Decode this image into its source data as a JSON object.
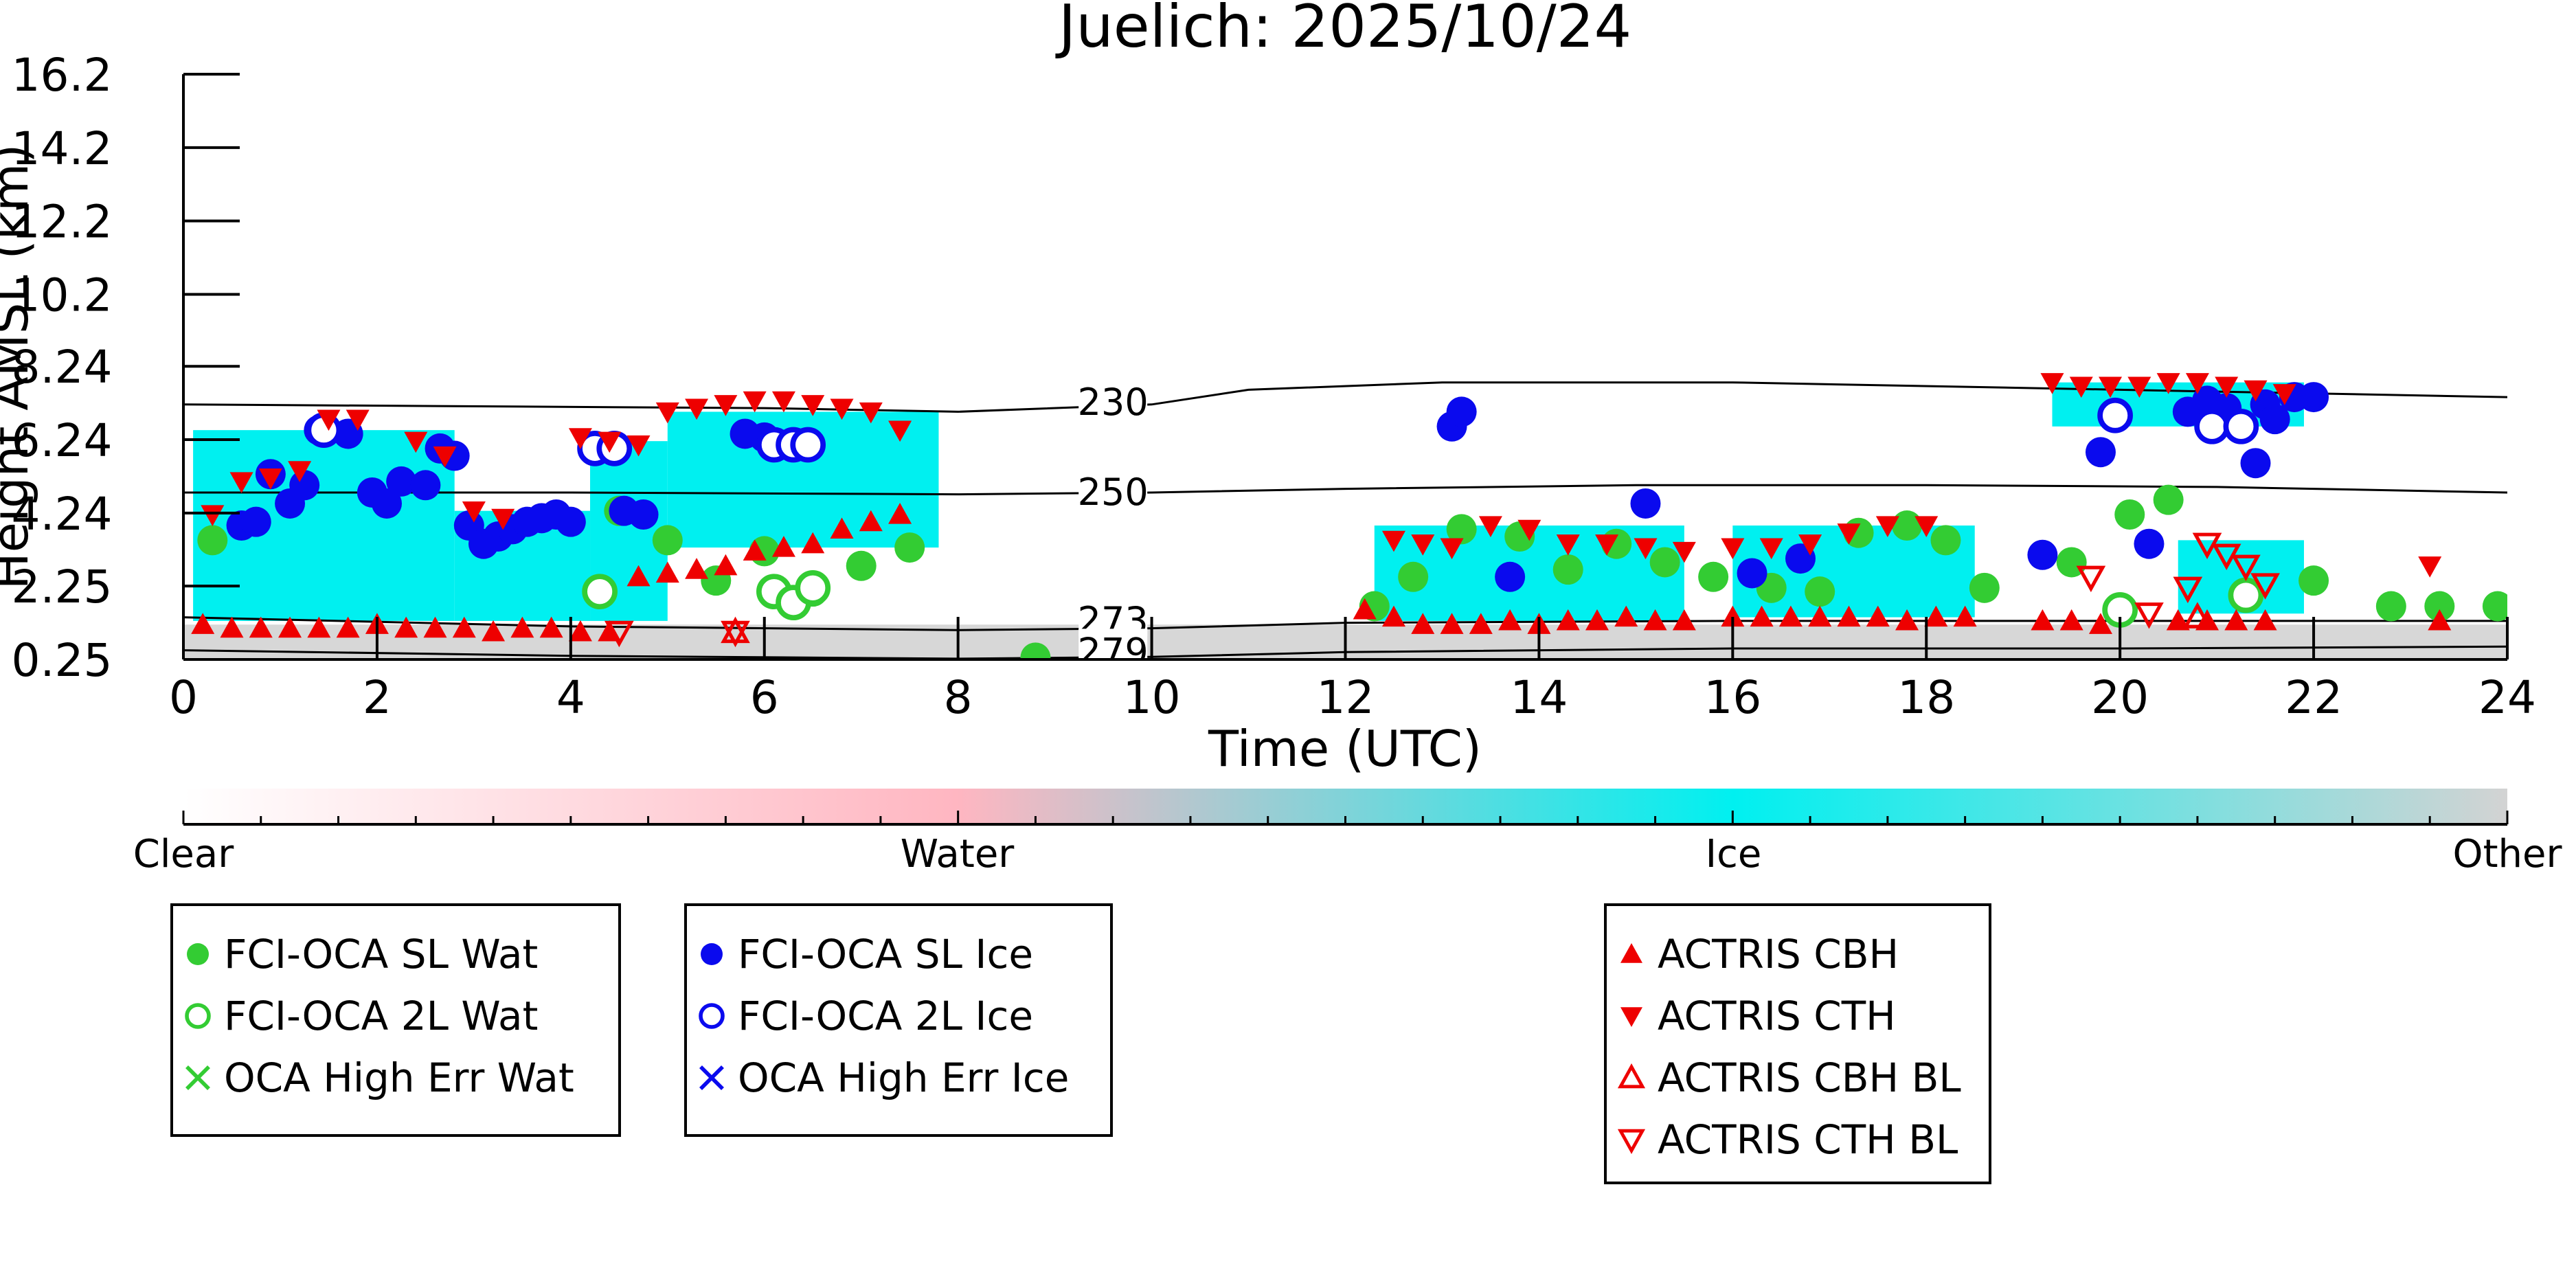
{
  "chart_data": {
    "type": "scatter",
    "title": "Juelich: 2025/10/24",
    "xlabel": "Time (UTC)",
    "ylabel": "Height AMSL (km)",
    "xlim": [
      0,
      24
    ],
    "ylim": [
      0.25,
      16.2
    ],
    "x_ticks": [
      0,
      2,
      4,
      6,
      8,
      10,
      12,
      14,
      16,
      18,
      20,
      22,
      24
    ],
    "x_tick_labels": [
      "0",
      "2",
      "4",
      "6",
      "8",
      "10",
      "12",
      "14",
      "16",
      "18",
      "20",
      "22",
      "24"
    ],
    "y_ticks": [
      0.25,
      2.25,
      4.24,
      6.24,
      8.24,
      10.2,
      12.2,
      14.2,
      16.2
    ],
    "y_tick_labels": [
      "0.25",
      "2.25",
      "4.24",
      "6.24",
      "8.24",
      "10.2",
      "12.2",
      "14.2",
      "16.2"
    ],
    "colors": {
      "water_marker": "#33cc33",
      "ice_marker": "#0a0aee",
      "actris_marker": "#ee0000",
      "ice_phase": "#00f0f0",
      "water_phase": "#ffb6c1",
      "other_phase": "#d3d3d3"
    },
    "isotherms": [
      {
        "label": "230",
        "x": [
          0,
          6,
          8,
          10,
          11,
          13,
          16,
          20,
          24
        ],
        "y": [
          7.2,
          7.1,
          7.0,
          7.2,
          7.6,
          7.8,
          7.8,
          7.6,
          7.4
        ]
      },
      {
        "label": "250",
        "x": [
          0,
          4,
          8,
          10,
          12,
          15,
          18,
          21,
          24
        ],
        "y": [
          4.8,
          4.8,
          4.75,
          4.8,
          4.9,
          5.0,
          5.0,
          4.95,
          4.8
        ]
      },
      {
        "label": "273",
        "x": [
          0,
          4,
          8,
          10,
          12,
          16,
          20,
          24
        ],
        "y": [
          1.4,
          1.15,
          1.05,
          1.1,
          1.25,
          1.3,
          1.3,
          1.3
        ]
      },
      {
        "label": "279",
        "x": [
          0,
          4,
          8,
          10,
          12,
          16,
          20,
          24
        ],
        "y": [
          0.5,
          0.35,
          0.27,
          0.32,
          0.45,
          0.55,
          0.55,
          0.6
        ]
      }
    ],
    "isotherm_labels_at": [
      {
        "label": "230",
        "x": 9.6,
        "y": 7.25
      },
      {
        "label": "250",
        "x": 9.6,
        "y": 4.8
      },
      {
        "label": "273",
        "x": 9.6,
        "y": 1.3
      },
      {
        "label": "279",
        "x": 9.6,
        "y": 0.45
      }
    ],
    "phase_regions": [
      {
        "phase": "ice",
        "x0": 0.1,
        "x1": 2.8,
        "y0": 1.3,
        "y1": 6.5
      },
      {
        "phase": "ice",
        "x0": 2.8,
        "x1": 4.2,
        "y0": 1.3,
        "y1": 4.3
      },
      {
        "phase": "ice",
        "x0": 4.2,
        "x1": 5.0,
        "y0": 1.3,
        "y1": 6.2
      },
      {
        "phase": "ice",
        "x0": 5.0,
        "x1": 7.8,
        "y0": 3.3,
        "y1": 7.0
      },
      {
        "phase": "ice",
        "x0": 12.3,
        "x1": 15.5,
        "y0": 1.3,
        "y1": 3.9
      },
      {
        "phase": "ice",
        "x0": 16.0,
        "x1": 18.5,
        "y0": 1.4,
        "y1": 3.9
      },
      {
        "phase": "ice",
        "x0": 19.3,
        "x1": 21.9,
        "y0": 6.6,
        "y1": 7.8
      },
      {
        "phase": "ice",
        "x0": 20.6,
        "x1": 21.9,
        "y0": 1.5,
        "y1": 3.5
      },
      {
        "phase": "other",
        "x0": 0.0,
        "x1": 24.0,
        "y0": 0.25,
        "y1": 1.2
      }
    ],
    "series": [
      {
        "name": "FCI-OCA SL Wat",
        "marker": "filled-circle",
        "color": "#33cc33",
        "x": [
          0.3,
          4.5,
          5.0,
          5.5,
          6.0,
          6.5,
          7.0,
          7.5,
          8.8,
          12.3,
          12.7,
          13.2,
          13.8,
          14.3,
          14.8,
          15.3,
          15.8,
          16.4,
          16.9,
          17.3,
          17.8,
          18.2,
          18.6,
          19.5,
          20.1,
          20.5,
          21.3,
          22.0,
          22.8,
          23.3,
          23.9
        ],
        "y": [
          3.5,
          4.3,
          3.5,
          2.4,
          3.2,
          2.1,
          2.8,
          3.3,
          0.3,
          1.7,
          2.5,
          3.8,
          3.6,
          2.7,
          3.4,
          2.9,
          2.5,
          2.2,
          2.1,
          3.7,
          3.9,
          3.5,
          2.2,
          2.9,
          4.2,
          4.6,
          2.0,
          2.4,
          1.7,
          1.7,
          1.7
        ]
      },
      {
        "name": "FCI-OCA 2L Wat",
        "marker": "open-circle",
        "color": "#33cc33",
        "x": [
          4.3,
          6.1,
          6.3,
          6.5,
          20.0,
          21.3
        ],
        "y": [
          2.1,
          2.1,
          1.8,
          2.2,
          1.6,
          2.0
        ]
      },
      {
        "name": "OCA High Err Wat",
        "marker": "cross",
        "color": "#33cc33",
        "x": [],
        "y": []
      },
      {
        "name": "FCI-OCA SL Ice",
        "marker": "filled-circle",
        "color": "#0a0aee",
        "x": [
          0.6,
          0.75,
          0.9,
          1.1,
          1.25,
          1.4,
          1.7,
          1.95,
          2.1,
          2.25,
          2.5,
          2.65,
          2.8,
          2.95,
          3.1,
          3.25,
          3.4,
          3.55,
          3.7,
          3.85,
          4.0,
          4.55,
          4.75,
          5.8,
          6.0,
          13.1,
          13.2,
          13.7,
          15.1,
          16.2,
          16.7,
          19.2,
          19.8,
          20.3,
          20.7,
          20.9,
          21.1,
          21.4,
          21.5,
          21.6,
          21.8,
          22.0
        ],
        "y": [
          3.9,
          4.0,
          5.3,
          4.5,
          5.0,
          6.5,
          6.4,
          4.8,
          4.5,
          5.1,
          5.0,
          6.0,
          5.8,
          3.9,
          3.4,
          3.6,
          3.8,
          4.0,
          4.1,
          4.2,
          4.0,
          4.3,
          4.2,
          6.4,
          6.3,
          6.6,
          7.0,
          2.5,
          4.5,
          2.6,
          3.0,
          3.1,
          5.9,
          3.4,
          7.0,
          7.3,
          7.1,
          5.6,
          7.2,
          6.8,
          7.4,
          7.4
        ]
      },
      {
        "name": "FCI-OCA 2L Ice",
        "marker": "open-circle",
        "color": "#0a0aee",
        "x": [
          1.45,
          4.25,
          4.45,
          6.1,
          6.3,
          6.45,
          19.95,
          20.95,
          21.25
        ],
        "y": [
          6.5,
          6.0,
          6.0,
          6.1,
          6.1,
          6.1,
          6.9,
          6.6,
          6.6
        ]
      },
      {
        "name": "OCA High Err Ice",
        "marker": "cross",
        "color": "#0a0aee",
        "x": [],
        "y": []
      },
      {
        "name": "ACTRIS CBH",
        "marker": "filled-triangle-up",
        "color": "#ee0000",
        "x": [
          0.2,
          0.5,
          0.8,
          1.1,
          1.4,
          1.7,
          2.0,
          2.3,
          2.6,
          2.9,
          3.2,
          3.5,
          3.8,
          4.1,
          4.4,
          4.7,
          5.0,
          5.3,
          5.6,
          5.9,
          6.2,
          6.5,
          6.8,
          7.1,
          7.4,
          12.2,
          12.5,
          12.8,
          13.1,
          13.4,
          13.7,
          14.0,
          14.3,
          14.6,
          14.9,
          15.2,
          15.5,
          16.0,
          16.3,
          16.6,
          16.9,
          17.2,
          17.5,
          17.8,
          18.1,
          18.4,
          19.2,
          19.5,
          19.8,
          20.6,
          20.9,
          21.2,
          21.5,
          23.3
        ],
        "y": [
          1.2,
          1.1,
          1.1,
          1.1,
          1.1,
          1.1,
          1.2,
          1.1,
          1.1,
          1.1,
          1.0,
          1.1,
          1.1,
          1.0,
          1.0,
          2.5,
          2.6,
          2.7,
          2.8,
          3.2,
          3.3,
          3.4,
          3.8,
          4.0,
          4.2,
          1.6,
          1.4,
          1.2,
          1.2,
          1.2,
          1.3,
          1.2,
          1.3,
          1.3,
          1.4,
          1.3,
          1.3,
          1.4,
          1.4,
          1.4,
          1.4,
          1.4,
          1.4,
          1.3,
          1.4,
          1.4,
          1.3,
          1.3,
          1.2,
          1.3,
          1.3,
          1.3,
          1.3,
          1.3
        ]
      },
      {
        "name": "ACTRIS CTH",
        "marker": "filled-triangle-down",
        "color": "#ee0000",
        "x": [
          0.3,
          0.6,
          0.9,
          1.2,
          1.5,
          1.8,
          2.4,
          2.7,
          3.0,
          3.3,
          4.1,
          4.4,
          4.7,
          5.0,
          5.3,
          5.6,
          5.9,
          6.2,
          6.5,
          6.8,
          7.1,
          7.4,
          12.5,
          12.8,
          13.1,
          13.5,
          13.9,
          14.3,
          14.7,
          15.1,
          15.5,
          16.0,
          16.4,
          16.8,
          17.2,
          17.6,
          18.0,
          19.3,
          19.6,
          19.9,
          20.2,
          20.5,
          20.8,
          21.1,
          21.4,
          21.7,
          23.2
        ],
        "y": [
          4.2,
          5.1,
          5.2,
          5.4,
          6.8,
          6.8,
          6.2,
          5.8,
          4.3,
          4.1,
          6.3,
          6.2,
          6.1,
          7.0,
          7.1,
          7.2,
          7.3,
          7.3,
          7.2,
          7.1,
          7.0,
          6.5,
          3.5,
          3.4,
          3.3,
          3.9,
          3.8,
          3.4,
          3.4,
          3.3,
          3.2,
          3.3,
          3.3,
          3.4,
          3.7,
          3.9,
          3.9,
          7.8,
          7.7,
          7.7,
          7.7,
          7.8,
          7.8,
          7.7,
          7.6,
          7.5,
          2.8
        ]
      },
      {
        "name": "ACTRIS CBH BL",
        "marker": "open-triangle-up",
        "color": "#ee0000",
        "x": [
          5.7,
          20.8
        ],
        "y": [
          1.0,
          1.4
        ]
      },
      {
        "name": "ACTRIS CTH BL",
        "marker": "open-triangle-down",
        "color": "#ee0000",
        "x": [
          4.5,
          5.7,
          19.7,
          20.3,
          20.7,
          20.9,
          21.1,
          21.3,
          21.5
        ],
        "y": [
          1.0,
          1.0,
          2.5,
          1.5,
          2.2,
          3.4,
          3.1,
          2.8,
          2.3
        ]
      }
    ],
    "colorbar": {
      "labels": [
        "Clear",
        "Water",
        "Ice",
        "Other"
      ],
      "stops": [
        "#ffffff",
        "#ffb6c1",
        "#00f0f0",
        "#d3d3d3"
      ],
      "positions": [
        0.0,
        0.333,
        0.667,
        1.0
      ]
    },
    "legend_groups": [
      [
        "FCI-OCA SL Wat",
        "FCI-OCA 2L Wat",
        "OCA High Err Wat"
      ],
      [
        "FCI-OCA SL Ice",
        "FCI-OCA 2L Ice",
        "OCA High Err Ice"
      ],
      [
        "ACTRIS CBH",
        "ACTRIS CTH",
        "ACTRIS CBH BL",
        "ACTRIS CTH BL"
      ]
    ]
  }
}
